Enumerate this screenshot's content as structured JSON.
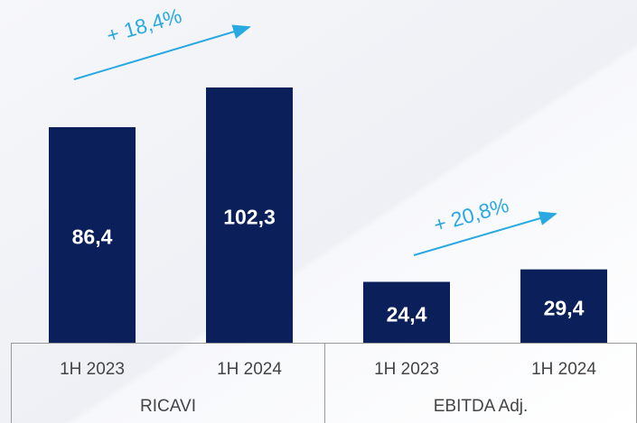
{
  "chart_data": {
    "type": "bar",
    "categories": [
      "1H 2023",
      "1H 2024",
      "1H 2023",
      "1H 2024"
    ],
    "groups": [
      "RICAVI",
      "EBITDA Adj."
    ],
    "values": [
      86.4,
      102.3,
      24.4,
      29.4
    ],
    "value_labels": [
      "86,4",
      "102,3",
      "24,4",
      "29,4"
    ],
    "color": "#0b1f5b",
    "annotations": [
      "+ 18,4%",
      "+ 20,8%"
    ],
    "annotation_color": "#29a9e1"
  }
}
